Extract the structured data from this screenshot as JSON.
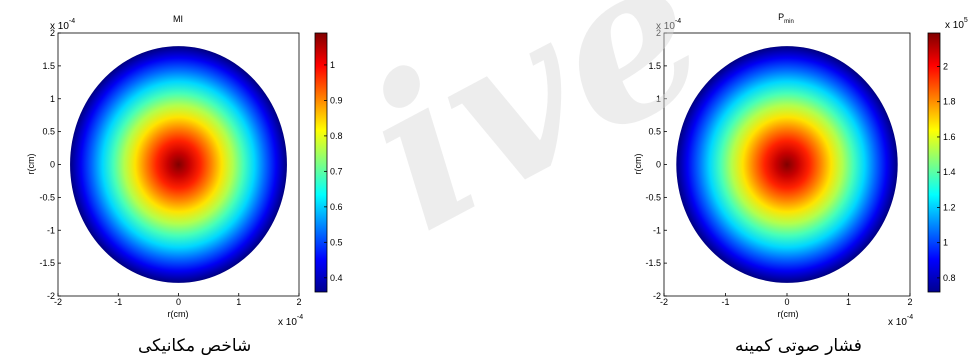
{
  "chart_data": [
    {
      "type": "heatmap",
      "title": "MI",
      "title_sub": "",
      "xlabel": "r(cm)",
      "ylabel": "r(cm)",
      "x_range": [
        -2,
        2
      ],
      "y_range": [
        -2,
        2
      ],
      "x_ticks": [
        "-2",
        "-1",
        "0",
        "1",
        "2"
      ],
      "y_ticks": [
        "2",
        "1.5",
        "1",
        "0.5",
        "0",
        "-0.5",
        "-1",
        "-1.5",
        "-2"
      ],
      "x_scale_label": "x 10",
      "y_scale_label": "x 10",
      "exponent": "-4",
      "shape": "disk",
      "disk_radius": 1.8,
      "value_center": 1.09,
      "value_edge": 0.36,
      "colormap": "jet",
      "colorbar_range": [
        0.36,
        1.09
      ],
      "colorbar_ticks": [
        "1",
        "0.9",
        "0.8",
        "0.7",
        "0.6",
        "0.5",
        "0.4"
      ],
      "colorbar_tick_values": [
        1,
        0.9,
        0.8,
        0.7,
        0.6,
        0.5,
        0.4
      ],
      "colorbar_exponent": "",
      "caption": "شاخص مکانیکی"
    },
    {
      "type": "heatmap",
      "title": "P",
      "title_sub": "min",
      "xlabel": "r(cm)",
      "ylabel": "r(cm)",
      "x_range": [
        -2,
        2
      ],
      "y_range": [
        -2,
        2
      ],
      "x_ticks": [
        "-2",
        "-1",
        "0",
        "1",
        "2"
      ],
      "y_ticks": [
        "2",
        "1.5",
        "1",
        "0.5",
        "0",
        "-0.5",
        "-1",
        "-1.5",
        "-2"
      ],
      "x_scale_label": "x 10",
      "y_scale_label": "x 10",
      "exponent": "-4",
      "shape": "disk",
      "disk_radius": 1.8,
      "value_center": 2.19,
      "value_edge": 0.72,
      "colormap": "jet",
      "colorbar_range": [
        0.72,
        2.19
      ],
      "colorbar_ticks": [
        "2",
        "1.8",
        "1.6",
        "1.4",
        "1.2",
        "1",
        "0.8"
      ],
      "colorbar_tick_values": [
        2,
        1.8,
        1.6,
        1.4,
        1.2,
        1,
        0.8
      ],
      "colorbar_exponent": "5",
      "caption": "فشار صوتی کمینه"
    }
  ]
}
